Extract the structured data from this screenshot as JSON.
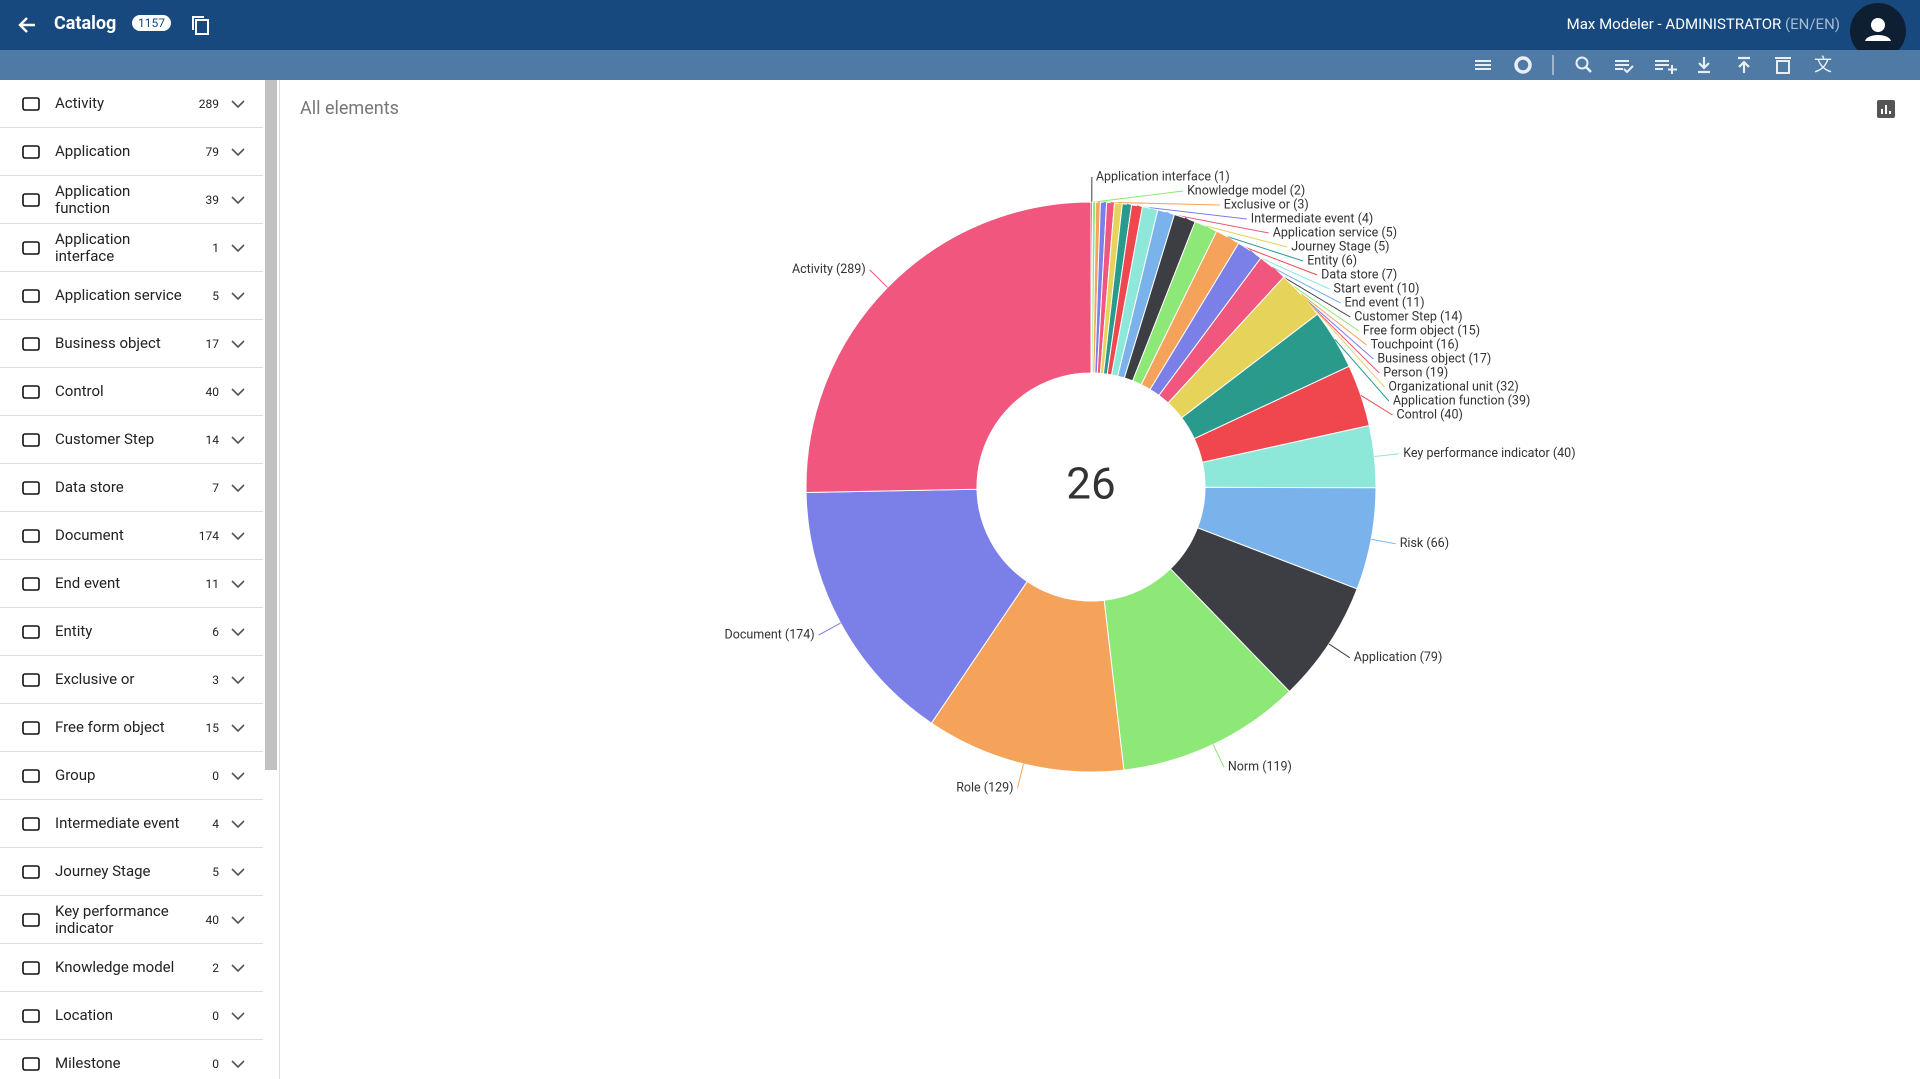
{
  "header": {
    "title": "Catalog",
    "badge": "1157",
    "user": "Max Modeler - ADMINISTRATOR",
    "language": "(EN/EN)"
  },
  "sidebar": {
    "items": [
      {
        "name": "Activity",
        "count": 289
      },
      {
        "name": "Application",
        "count": 79
      },
      {
        "name": "Application function",
        "count": 39
      },
      {
        "name": "Application interface",
        "count": 1
      },
      {
        "name": "Application service",
        "count": 5
      },
      {
        "name": "Business object",
        "count": 17
      },
      {
        "name": "Control",
        "count": 40
      },
      {
        "name": "Customer Step",
        "count": 14
      },
      {
        "name": "Data store",
        "count": 7
      },
      {
        "name": "Document",
        "count": 174
      },
      {
        "name": "End event",
        "count": 11
      },
      {
        "name": "Entity",
        "count": 6
      },
      {
        "name": "Exclusive or",
        "count": 3
      },
      {
        "name": "Free form object",
        "count": 15
      },
      {
        "name": "Group",
        "count": 0
      },
      {
        "name": "Intermediate event",
        "count": 4
      },
      {
        "name": "Journey Stage",
        "count": 5
      },
      {
        "name": "Key performance indicator",
        "count": 40
      },
      {
        "name": "Knowledge model",
        "count": 2
      },
      {
        "name": "Location",
        "count": 0
      },
      {
        "name": "Milestone",
        "count": 0
      }
    ]
  },
  "chart_data": {
    "type": "pie",
    "title": "All elements",
    "center_label": "26",
    "categories": [
      "Application interface (1)",
      "Knowledge model (2)",
      "Exclusive or (3)",
      "Intermediate event (4)",
      "Application service (5)",
      "Journey Stage (5)",
      "Entity (6)",
      "Data store (7)",
      "Start event (10)",
      "End event (11)",
      "Customer Step (14)",
      "Free form object (15)",
      "Touchpoint (16)",
      "Business object (17)",
      "Person (19)",
      "Organizational unit (32)",
      "Application function (39)",
      "Control (40)",
      "Key performance indicator (40)",
      "Risk (66)",
      "Application (79)",
      "Norm (119)",
      "Role (129)",
      "Document (174)",
      "Activity (289)"
    ],
    "values": [
      1,
      2,
      3,
      4,
      5,
      5,
      6,
      7,
      10,
      11,
      14,
      15,
      16,
      17,
      19,
      32,
      39,
      40,
      40,
      66,
      79,
      119,
      129,
      174,
      289
    ],
    "colors": [
      "#3d3d44",
      "#8de878",
      "#f5a35a",
      "#7b7fe8",
      "#f0567e",
      "#e6d45a",
      "#2a9a8c",
      "#f0474f",
      "#8ee8da",
      "#7ab3ec",
      "#3d3d44",
      "#8de878",
      "#f5a35a",
      "#7b7fe8",
      "#f0567e",
      "#e6d45a",
      "#2a9a8c",
      "#f0474f",
      "#8ee8da",
      "#7ab3ec",
      "#3d3d44",
      "#8de878",
      "#f5a35a",
      "#7b7fe8",
      "#f0567e"
    ]
  }
}
